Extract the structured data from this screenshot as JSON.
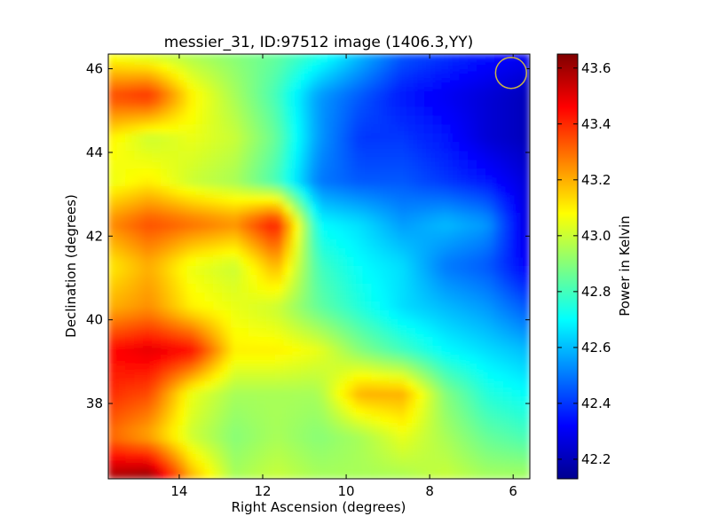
{
  "chart_data": {
    "type": "heatmap",
    "title": "messier_31, ID:97512 image (1406.3,YY)",
    "xlabel": "Right Ascension (degrees)",
    "ylabel": "Declination (degrees)",
    "colorbar_label": "Power in Kelvin",
    "colormap": "jet",
    "x_axis_inverted": true,
    "xlim": [
      15.7,
      5.6
    ],
    "ylim": [
      36.2,
      46.35
    ],
    "x_ticks": [
      14,
      12,
      10,
      8,
      6
    ],
    "y_ticks": [
      38,
      40,
      42,
      44,
      46
    ],
    "colorbar_range": [
      42.13,
      43.65
    ],
    "colorbar_ticks": [
      42.2,
      42.4,
      42.6,
      42.8,
      43.0,
      43.2,
      43.4,
      43.6
    ],
    "x_label_text": [
      "14",
      "12",
      "10",
      "8",
      "6"
    ],
    "y_label_text": [
      "38",
      "40",
      "42",
      "44",
      "46"
    ],
    "cb_label_text": [
      "42.2",
      "42.4",
      "42.6",
      "42.8",
      "43.0",
      "43.2",
      "43.4",
      "43.6"
    ],
    "beam_marker": {
      "ra": 6.05,
      "dec": 45.9,
      "radius_deg": 0.37,
      "color": "#c8b44a"
    },
    "grid": false,
    "value_grid_ra": [
      15.5,
      14.5,
      13.5,
      12.5,
      11.5,
      10.5,
      9.5,
      8.5,
      7.5,
      6.5,
      5.8
    ],
    "value_grid_dec": [
      46.0,
      45.0,
      44.0,
      43.0,
      42.0,
      41.0,
      40.0,
      39.0,
      38.0,
      37.0,
      36.4
    ],
    "values": [
      [
        43.05,
        43.0,
        42.95,
        42.9,
        42.85,
        42.75,
        42.6,
        42.45,
        42.4,
        42.35,
        42.3
      ],
      [
        43.35,
        43.4,
        43.1,
        42.95,
        42.8,
        42.55,
        42.45,
        42.35,
        42.3,
        42.25,
        42.2
      ],
      [
        43.1,
        43.0,
        43.05,
        43.0,
        42.85,
        42.55,
        42.4,
        42.4,
        42.35,
        42.25,
        42.2
      ],
      [
        43.05,
        43.1,
        43.0,
        42.95,
        42.8,
        42.5,
        42.45,
        42.45,
        42.4,
        42.35,
        42.25
      ],
      [
        43.25,
        43.35,
        43.3,
        43.25,
        43.45,
        42.7,
        42.65,
        42.55,
        42.6,
        42.55,
        42.25
      ],
      [
        43.1,
        43.2,
        43.05,
        43.0,
        43.2,
        42.8,
        42.7,
        42.65,
        42.5,
        42.45,
        42.3
      ],
      [
        43.2,
        43.25,
        43.1,
        43.05,
        43.0,
        42.85,
        42.75,
        42.65,
        42.6,
        42.55,
        42.45
      ],
      [
        43.45,
        43.5,
        43.45,
        43.1,
        43.1,
        43.05,
        42.9,
        42.8,
        42.7,
        42.65,
        42.6
      ],
      [
        43.4,
        43.35,
        43.05,
        42.95,
        42.95,
        42.95,
        43.2,
        43.2,
        42.9,
        42.75,
        42.7
      ],
      [
        43.3,
        43.2,
        43.0,
        42.9,
        42.95,
        42.9,
        42.95,
        43.05,
        42.95,
        42.85,
        42.8
      ],
      [
        43.6,
        43.65,
        43.2,
        42.95,
        43.0,
        42.95,
        42.95,
        42.95,
        43.0,
        42.95,
        42.95
      ]
    ]
  }
}
